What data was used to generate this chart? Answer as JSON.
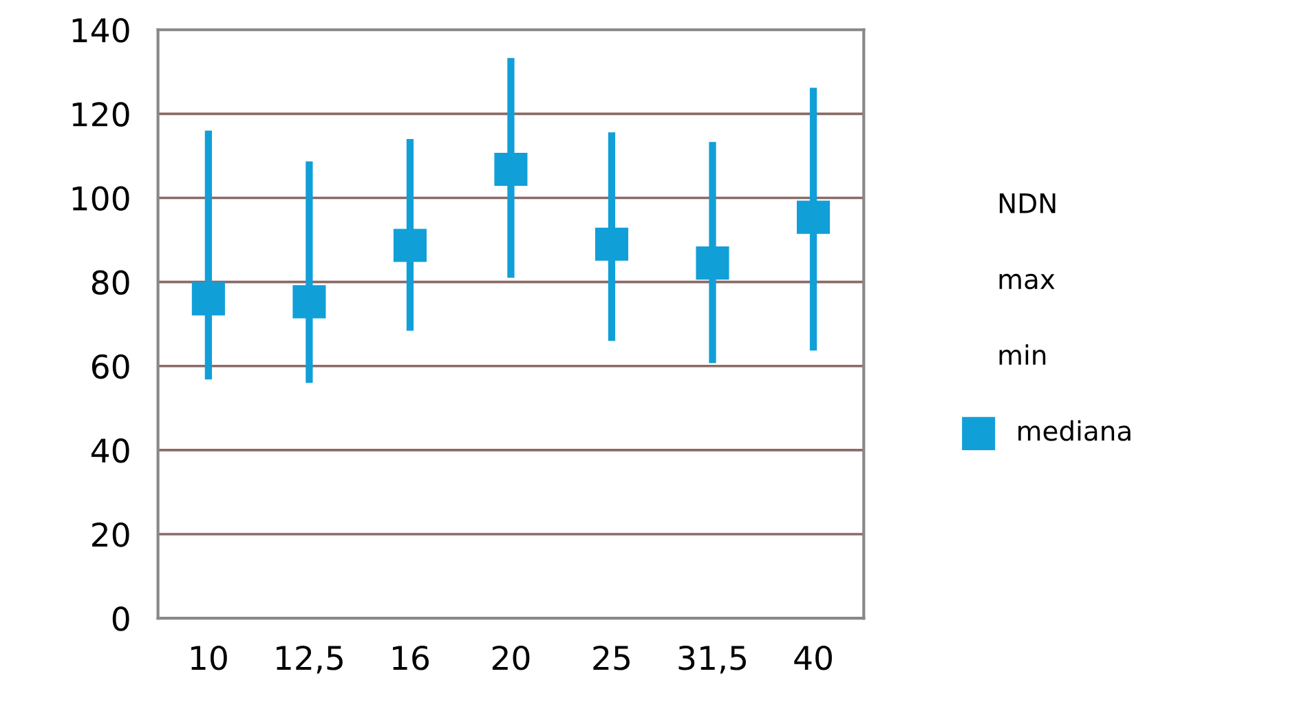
{
  "chart_data": {
    "type": "bar",
    "categories": [
      "10",
      "12,5",
      "16",
      "20",
      "25",
      "31,5",
      "40"
    ],
    "series": [
      {
        "color": "#119fd8",
        "base": [
          56.8,
          56,
          68.4,
          81,
          66,
          60.7,
          63.7
        ],
        "values": [
          59.2,
          52.7,
          45.6,
          52.3,
          49.6,
          52.6,
          62.5
        ]
      },
      {
        "name": "mediana",
        "type": "scatter",
        "marker": "square",
        "color": "#119fd8",
        "values": [
          76,
          75.3,
          88.7,
          106.8,
          89,
          84.5,
          95.4
        ]
      }
    ],
    "annotations": [
      "NDN",
      "max",
      "min"
    ],
    "ylim": [
      0,
      140
    ],
    "yticks": [
      0,
      20,
      40,
      60,
      80,
      100,
      120,
      140
    ],
    "grid": "y",
    "legend": "right"
  }
}
